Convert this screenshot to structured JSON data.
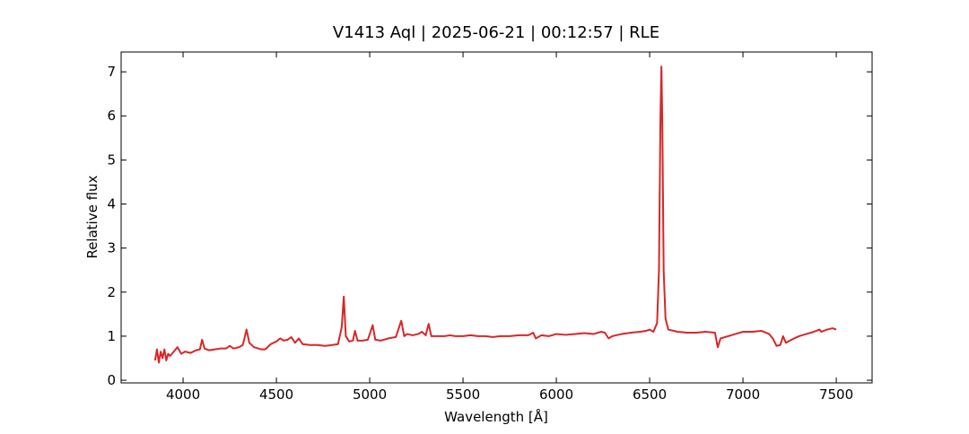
{
  "chart_data": {
    "type": "line",
    "title": "V1413 Aql | 2025-06-21 | 00:12:57 | RLE",
    "x_label": "Wavelength [Å]",
    "y_label": "Relative flux",
    "xlim": [
      3668,
      7692
    ],
    "ylim": [
      -0.06,
      7.45
    ],
    "xticks": [
      4000,
      4500,
      5000,
      5500,
      6000,
      6500,
      7000,
      7500
    ],
    "yticks": [
      0,
      1,
      2,
      3,
      4,
      5,
      6,
      7
    ],
    "series": [
      {
        "color": "#d62728",
        "x": [
          3850,
          3860,
          3870,
          3880,
          3890,
          3900,
          3910,
          3920,
          3930,
          3950,
          3970,
          3990,
          4010,
          4040,
          4070,
          4090,
          4102,
          4115,
          4140,
          4170,
          4200,
          4230,
          4250,
          4270,
          4300,
          4320,
          4340,
          4355,
          4380,
          4420,
          4440,
          4470,
          4500,
          4520,
          4540,
          4560,
          4580,
          4600,
          4620,
          4640,
          4680,
          4720,
          4760,
          4800,
          4830,
          4850,
          4861,
          4872,
          4890,
          4910,
          4921,
          4935,
          4960,
          4990,
          5016,
          5030,
          5060,
          5100,
          5140,
          5169,
          5185,
          5200,
          5230,
          5260,
          5280,
          5300,
          5316,
          5330,
          5360,
          5400,
          5430,
          5460,
          5500,
          5540,
          5580,
          5620,
          5660,
          5700,
          5750,
          5800,
          5850,
          5876,
          5890,
          5920,
          5960,
          6000,
          6050,
          6100,
          6150,
          6200,
          6240,
          6260,
          6280,
          6300,
          6350,
          6400,
          6450,
          6480,
          6500,
          6520,
          6540,
          6550,
          6558,
          6563,
          6568,
          6575,
          6585,
          6600,
          6650,
          6700,
          6750,
          6800,
          6850,
          6865,
          6880,
          6920,
          6960,
          7000,
          7050,
          7100,
          7140,
          7160,
          7180,
          7200,
          7215,
          7230,
          7260,
          7300,
          7340,
          7380,
          7410,
          7420,
          7450,
          7480,
          7500
        ],
        "values": [
          0.45,
          0.7,
          0.4,
          0.65,
          0.5,
          0.7,
          0.45,
          0.6,
          0.55,
          0.65,
          0.75,
          0.6,
          0.65,
          0.62,
          0.68,
          0.7,
          0.92,
          0.72,
          0.68,
          0.7,
          0.72,
          0.72,
          0.78,
          0.72,
          0.75,
          0.8,
          1.15,
          0.85,
          0.75,
          0.7,
          0.7,
          0.82,
          0.88,
          0.95,
          0.9,
          0.92,
          0.98,
          0.85,
          0.95,
          0.82,
          0.8,
          0.8,
          0.78,
          0.8,
          0.82,
          1.2,
          1.9,
          1.0,
          0.88,
          0.9,
          1.12,
          0.9,
          0.9,
          0.92,
          1.25,
          0.92,
          0.9,
          0.95,
          0.98,
          1.35,
          1.0,
          1.05,
          1.02,
          1.05,
          1.1,
          1.02,
          1.28,
          1.0,
          1.0,
          1.0,
          1.02,
          1.0,
          1.0,
          1.02,
          1.0,
          1.0,
          0.98,
          1.0,
          1.0,
          1.02,
          1.02,
          1.08,
          0.95,
          1.02,
          1.0,
          1.05,
          1.03,
          1.05,
          1.07,
          1.05,
          1.1,
          1.08,
          0.95,
          1.0,
          1.05,
          1.08,
          1.1,
          1.12,
          1.15,
          1.1,
          1.3,
          2.5,
          6.0,
          7.12,
          5.8,
          2.5,
          1.4,
          1.15,
          1.1,
          1.08,
          1.08,
          1.1,
          1.08,
          0.75,
          0.95,
          1.0,
          1.05,
          1.1,
          1.1,
          1.12,
          1.05,
          0.95,
          0.78,
          0.8,
          1.0,
          0.85,
          0.92,
          1.0,
          1.05,
          1.1,
          1.15,
          1.1,
          1.15,
          1.18,
          1.15
        ]
      }
    ]
  }
}
